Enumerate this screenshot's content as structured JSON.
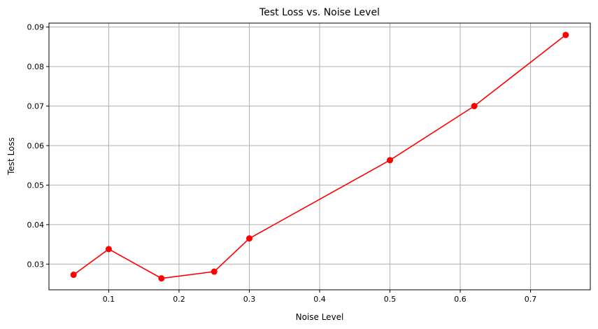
{
  "chart_data": {
    "type": "line",
    "title": "Test Loss vs. Noise Level",
    "xlabel": "Noise Level",
    "ylabel": "Test Loss",
    "xlim": [
      0.015,
      0.785
    ],
    "ylim": [
      0.0235,
      0.091
    ],
    "x_ticks": [
      0.1,
      0.2,
      0.3,
      0.4,
      0.5,
      0.6,
      0.7
    ],
    "x_tick_labels": [
      "0.1",
      "0.2",
      "0.3",
      "0.4",
      "0.5",
      "0.6",
      "0.7"
    ],
    "y_ticks": [
      0.03,
      0.04,
      0.05,
      0.06,
      0.07,
      0.08,
      0.09
    ],
    "y_tick_labels": [
      "0.03",
      "0.04",
      "0.05",
      "0.06",
      "0.07",
      "0.08",
      "0.09"
    ],
    "grid": true,
    "series": [
      {
        "color": "#ff0000",
        "marker": "circle",
        "x": [
          0.05,
          0.1,
          0.175,
          0.25,
          0.3,
          0.5,
          0.62,
          0.75
        ],
        "y": [
          0.0273,
          0.0338,
          0.0264,
          0.0281,
          0.0365,
          0.0563,
          0.07,
          0.088
        ]
      }
    ]
  }
}
